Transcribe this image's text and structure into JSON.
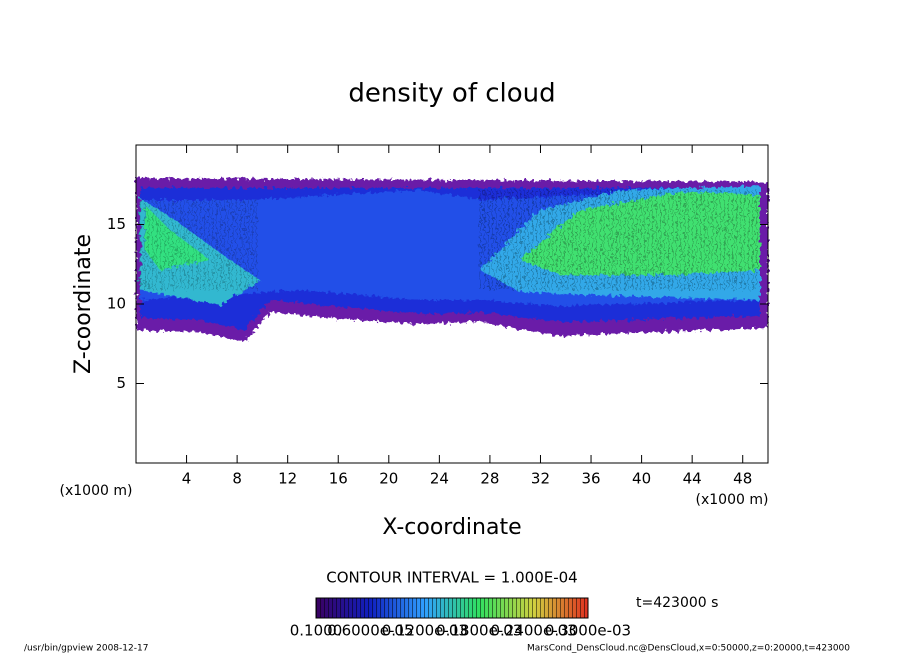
{
  "chart_data": {
    "type": "contour",
    "title": "density of cloud",
    "xlabel": "X-coordinate",
    "ylabel": "Z-coordinate",
    "xunit": "(x1000 m)",
    "yunit": "(x1000 m)",
    "xlim": [
      0,
      50
    ],
    "ylim": [
      0,
      20
    ],
    "xticks": [
      4,
      8,
      12,
      16,
      20,
      24,
      28,
      32,
      36,
      40,
      44,
      48
    ],
    "yticks": [
      5,
      10,
      15
    ],
    "contour_interval": "CONTOUR INTERVAL = 1.000E-04",
    "colorbar_labels": [
      "0.1000",
      "0.6000e-05",
      "0.1200e-03",
      "0.1800e-03",
      "0.2400e-03",
      "0.3000e-03"
    ],
    "time": "t=423000 s",
    "footer_left": "/usr/bin/gpview  2008-12-17",
    "footer_right": "MarsCond_DensCloud.nc@DensCloud,x=0:50000,z=0:20000,t=423000"
  }
}
